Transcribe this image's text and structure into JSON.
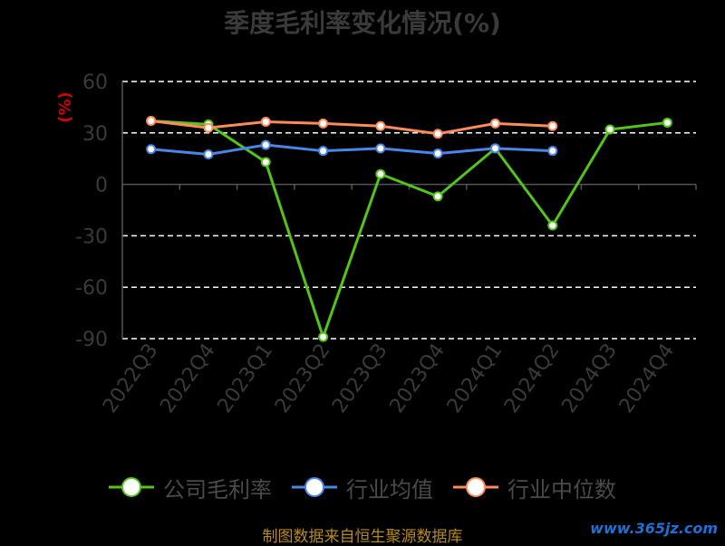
{
  "chart_data": {
    "type": "line",
    "title": "季度毛利率变化情况(%)",
    "ylabel": "(%)",
    "ylim": [
      -90,
      60
    ],
    "yticks": [
      60,
      30,
      0,
      -30,
      -60,
      -90
    ],
    "grid": true,
    "legend_position": "bottom",
    "categories": [
      "2022Q3",
      "2022Q4",
      "2023Q1",
      "2023Q2",
      "2023Q3",
      "2023Q4",
      "2024Q1",
      "2024Q2",
      "2024Q3",
      "2024Q4"
    ],
    "series": [
      {
        "name": "公司毛利率",
        "color": "#52c41a",
        "values": [
          37,
          35,
          13,
          -89,
          6,
          -7,
          21,
          -24,
          32,
          36
        ]
      },
      {
        "name": "行业均值",
        "color": "#4a86e8",
        "values": [
          20.5,
          17.5,
          23,
          19.5,
          21,
          18,
          21,
          19.5,
          null,
          null
        ]
      },
      {
        "name": "行业中位数",
        "color": "#ff8c5a",
        "values": [
          37,
          33,
          36.5,
          35.5,
          34,
          29.5,
          35.5,
          34,
          null,
          null
        ]
      }
    ]
  },
  "footer": {
    "source": "制图数据来自恒生聚源数据库",
    "watermark": "www.365jz.com"
  }
}
